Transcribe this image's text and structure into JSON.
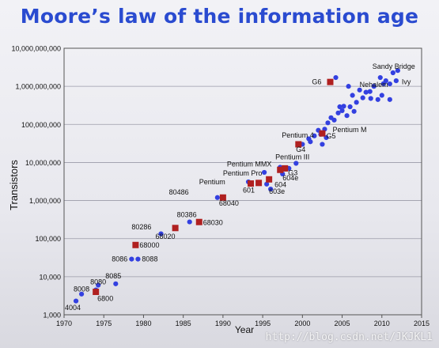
{
  "watermark": "http://blog.csdn.net/JKJKL1",
  "chart_data": {
    "type": "scatter",
    "title": "Moore’s law of the information age",
    "xlabel": "Year",
    "ylabel": "Transistors",
    "xlim": [
      1970,
      2015
    ],
    "ylim": [
      1000,
      10000000000
    ],
    "y_scale": "log",
    "grid": true,
    "x_ticks": [
      "1970",
      "1975",
      "1980",
      "1985",
      "1990",
      "1995",
      "2000",
      "2005",
      "2010",
      "2015"
    ],
    "y_ticks": [
      "1,000",
      "10,000",
      "100,000",
      "1,000,000",
      "10,000,000",
      "100,000,000",
      "1,000,000,000",
      "10,000,000,000"
    ],
    "colors": {
      "intel": "#3340e0",
      "motorola": "#b02020",
      "grid": "#9a9aa8",
      "title": "#2a4bd0"
    },
    "series": [
      {
        "marker": "circle",
        "points": [
          [
            1971.5,
            2300
          ],
          [
            1972.2,
            3500
          ],
          [
            1974.0,
            4500
          ],
          [
            1974.3,
            6000
          ],
          [
            1976.5,
            6500
          ],
          [
            1978.5,
            29000
          ],
          [
            1979.3,
            29000
          ],
          [
            1982.2,
            134000
          ],
          [
            1985.8,
            275000
          ],
          [
            1989.3,
            1200000
          ],
          [
            1993.2,
            3100000
          ],
          [
            1995.2,
            5500000
          ],
          [
            1997.2,
            7500000
          ],
          [
            1999.2,
            9500000
          ],
          [
            1995.5,
            2700000
          ],
          [
            1996.0,
            2000000
          ],
          [
            1997.5,
            5000000
          ],
          [
            1998.3,
            7000000
          ],
          [
            2000.0,
            30000000
          ],
          [
            2000.8,
            42000000
          ],
          [
            2001.5,
            50000000
          ],
          [
            2002.3,
            55000000
          ],
          [
            2002.8,
            75000000
          ],
          [
            2003.2,
            110000000
          ],
          [
            2003.6,
            150000000
          ],
          [
            2004.0,
            130000000
          ],
          [
            2004.5,
            200000000
          ],
          [
            2005.0,
            230000000
          ],
          [
            2005.2,
            300000000
          ],
          [
            2005.6,
            170000000
          ],
          [
            2006.0,
            290000000
          ],
          [
            2006.3,
            580000000
          ],
          [
            2006.8,
            380000000
          ],
          [
            2007.2,
            800000000
          ],
          [
            2007.6,
            500000000
          ],
          [
            2008.0,
            700000000
          ],
          [
            2008.5,
            730000000
          ],
          [
            2009.0,
            1000000000
          ],
          [
            2009.5,
            450000000
          ],
          [
            2009.8,
            1700000000
          ],
          [
            2010.2,
            1170000000
          ],
          [
            2010.5,
            1400000000
          ],
          [
            2011.0,
            1160000000
          ],
          [
            2011.4,
            2270000000
          ],
          [
            2011.8,
            1400000000
          ],
          [
            2012.0,
            2600000000
          ],
          [
            2010.0,
            580000000
          ],
          [
            2008.6,
            480000000
          ],
          [
            2004.2,
            1700000000
          ],
          [
            2005.8,
            1000000000
          ],
          [
            2002.0,
            70000000
          ],
          [
            2003.0,
            45000000
          ],
          [
            2001.0,
            35000000
          ],
          [
            2002.5,
            30000000
          ],
          [
            2004.7,
            290000000
          ],
          [
            2006.5,
            220000000
          ],
          [
            2011.0,
            450000000
          ]
        ]
      },
      {
        "marker": "square",
        "points": [
          [
            1974.0,
            4000
          ],
          [
            1979.0,
            68000
          ],
          [
            1984.0,
            190000
          ],
          [
            1987.0,
            273000
          ],
          [
            1990.0,
            1200000
          ],
          [
            1993.5,
            2800000
          ],
          [
            1994.5,
            2900000
          ],
          [
            1995.8,
            3600000
          ],
          [
            1997.2,
            6400000
          ],
          [
            1997.8,
            7000000
          ],
          [
            1999.5,
            30000000
          ],
          [
            2002.5,
            58000000
          ],
          [
            2003.5,
            1300000000
          ]
        ]
      }
    ],
    "annotations": [
      {
        "text": "4004",
        "x": 1970.1,
        "y": 1550
      },
      {
        "text": "8008",
        "x": 1971.2,
        "y": 4700
      },
      {
        "text": "8080",
        "x": 1973.3,
        "y": 7300
      },
      {
        "text": "6800",
        "x": 1974.2,
        "y": 2650
      },
      {
        "text": "8085",
        "x": 1975.2,
        "y": 10500
      },
      {
        "text": "8086",
        "x": 1976.0,
        "y": 29000
      },
      {
        "text": "8088",
        "x": 1979.8,
        "y": 29000
      },
      {
        "text": "68000",
        "x": 1979.5,
        "y": 68000
      },
      {
        "text": "80286",
        "x": 1978.5,
        "y": 200000
      },
      {
        "text": "68020",
        "x": 1981.5,
        "y": 115000
      },
      {
        "text": "80386",
        "x": 1984.2,
        "y": 420000
      },
      {
        "text": "68030",
        "x": 1987.5,
        "y": 265000
      },
      {
        "text": "80486",
        "x": 1983.2,
        "y": 1650000
      },
      {
        "text": "68040",
        "x": 1989.5,
        "y": 850000
      },
      {
        "text": "Pentium MMX",
        "x": 1990.5,
        "y": 9000000
      },
      {
        "text": "Pentium Pro",
        "x": 1990.0,
        "y": 5200000
      },
      {
        "text": "Pentium",
        "x": 1987.0,
        "y": 3100000
      },
      {
        "text": "601",
        "x": 1992.5,
        "y": 1850000
      },
      {
        "text": "603e",
        "x": 1995.8,
        "y": 1750000
      },
      {
        "text": "604",
        "x": 1996.5,
        "y": 2600000
      },
      {
        "text": "604e",
        "x": 1997.5,
        "y": 3900000
      },
      {
        "text": "G3",
        "x": 1998.2,
        "y": 5400000
      },
      {
        "text": "Pentium III",
        "x": 1996.6,
        "y": 14000000
      },
      {
        "text": "Pentium 4",
        "x": 1997.4,
        "y": 52000000
      },
      {
        "text": "G4",
        "x": 1999.2,
        "y": 22000000
      },
      {
        "text": "G5",
        "x": 2003.0,
        "y": 50000000
      },
      {
        "text": "Pentium M",
        "x": 2003.8,
        "y": 72000000
      },
      {
        "text": "G6",
        "x": 2001.2,
        "y": 1300000000
      },
      {
        "text": "Nehalem",
        "x": 2007.2,
        "y": 1100000000
      },
      {
        "text": "Ivy",
        "x": 2012.5,
        "y": 1300000000
      },
      {
        "text": "Sandy Bridge",
        "x": 2008.8,
        "y": 3300000000
      }
    ]
  }
}
